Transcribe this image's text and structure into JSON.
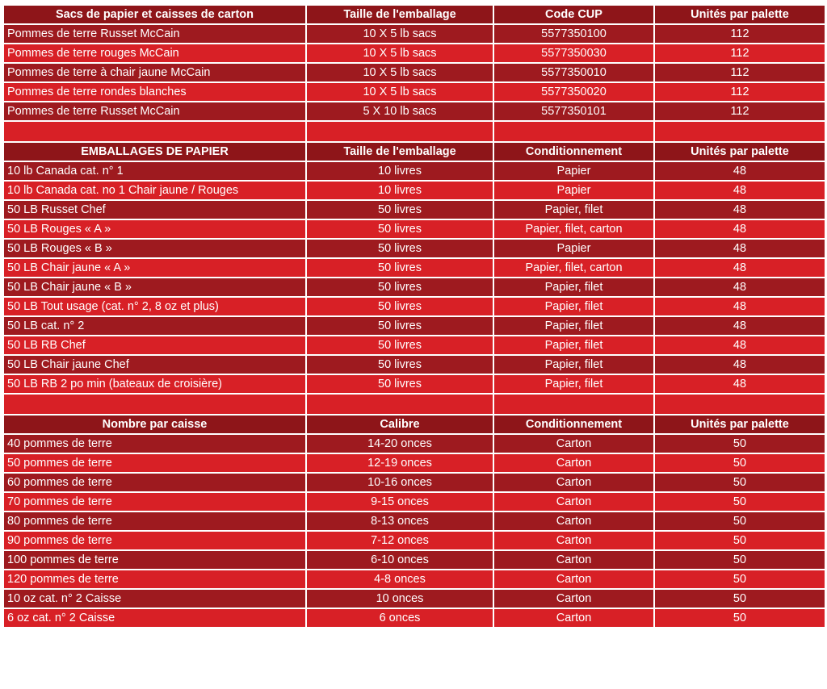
{
  "tables": [
    {
      "headers": [
        "Sacs de papier et caisses de carton",
        "Taille de l'emballage",
        "Code CUP",
        "Unités par palette"
      ],
      "rows": [
        [
          "Pommes de terre Russet McCain",
          "10 X 5 lb sacs",
          "5577350100",
          "112"
        ],
        [
          "Pommes de terre rouges McCain",
          "10 X 5 lb sacs",
          "5577350030",
          "112"
        ],
        [
          "Pommes de terre à chair jaune McCain",
          "10 X 5 lb sacs",
          "5577350010",
          "112"
        ],
        [
          "Pommes de terre rondes blanches",
          "10 X 5 lb sacs",
          "5577350020",
          "112"
        ],
        [
          "Pommes de terre Russet McCain",
          "5 X 10 lb sacs",
          "5577350101",
          "112"
        ]
      ]
    },
    {
      "headers": [
        "EMBALLAGES DE PAPIER",
        "Taille de l'emballage",
        "Conditionnement",
        "Unités par palette"
      ],
      "rows": [
        [
          "10 lb  Canada cat. n° 1",
          "10 livres",
          "Papier",
          "48"
        ],
        [
          "10 lb  Canada cat. no 1  Chair jaune / Rouges",
          "10 livres",
          "Papier",
          "48"
        ],
        [
          "50 LB Russet Chef",
          "50 livres",
          "Papier, filet",
          "48"
        ],
        [
          "50 LB Rouges « A »",
          "50 livres",
          "Papier, filet, carton",
          "48"
        ],
        [
          "50 LB Rouges « B »",
          "50 livres",
          "Papier",
          "48"
        ],
        [
          "50 LB Chair jaune « A »",
          "50 livres",
          "Papier, filet, carton",
          "48"
        ],
        [
          "50 LB Chair jaune « B »",
          "50 livres",
          "Papier, filet",
          "48"
        ],
        [
          "50 LB Tout usage (cat. n° 2,  8 oz et plus)",
          "50 livres",
          "Papier, filet",
          "48"
        ],
        [
          "50 LB cat. n° 2",
          "50 livres",
          "Papier, filet",
          "48"
        ],
        [
          "50 LB RB Chef",
          "50 livres",
          "Papier, filet",
          "48"
        ],
        [
          "50 LB Chair jaune Chef",
          "50 livres",
          "Papier, filet",
          "48"
        ],
        [
          "50 LB RB 2 po min (bateaux de croisière)",
          "50 livres",
          "Papier, filet",
          "48"
        ]
      ]
    },
    {
      "headers": [
        "Nombre par caisse",
        "Calibre",
        "Conditionnement",
        "Unités par palette"
      ],
      "rows": [
        [
          "40 pommes de terre",
          "14-20 onces",
          "Carton",
          "50"
        ],
        [
          "50 pommes de terre",
          "12-19 onces",
          "Carton",
          "50"
        ],
        [
          "60 pommes de terre",
          "10-16 onces",
          "Carton",
          "50"
        ],
        [
          "70 pommes de terre",
          "9-15 onces",
          "Carton",
          "50"
        ],
        [
          "80 pommes de terre",
          "8-13 onces",
          "Carton",
          "50"
        ],
        [
          "90 pommes de terre",
          "7-12 onces",
          "Carton",
          "50"
        ],
        [
          "100 pommes de terre",
          "6-10 onces",
          "Carton",
          "50"
        ],
        [
          "120 pommes de terre",
          "4-8 onces",
          "Carton",
          "50"
        ],
        [
          "10 oz cat. n° 2  Caisse",
          "10 onces",
          "Carton",
          "50"
        ],
        [
          "6 oz cat. n° 2  Caisse",
          "6 onces",
          "Carton",
          "50"
        ]
      ]
    }
  ],
  "colors": {
    "header": "#8e1519",
    "row_dark": "#9e1a1f",
    "row_light": "#d82026",
    "text": "#ffffff"
  }
}
